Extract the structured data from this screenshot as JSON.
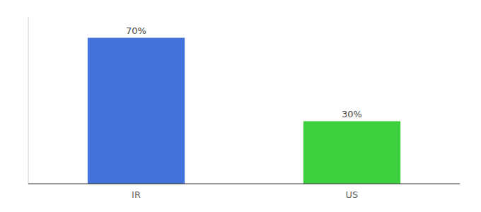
{
  "chart_data": {
    "type": "bar",
    "categories": [
      "IR",
      "US"
    ],
    "values": [
      70,
      30
    ],
    "value_labels": [
      "70%",
      "30%"
    ],
    "colors": [
      "#4472db",
      "#3ecf3e"
    ],
    "ylim": [
      0,
      80
    ],
    "data_labels": true,
    "tick_labels": "x"
  }
}
